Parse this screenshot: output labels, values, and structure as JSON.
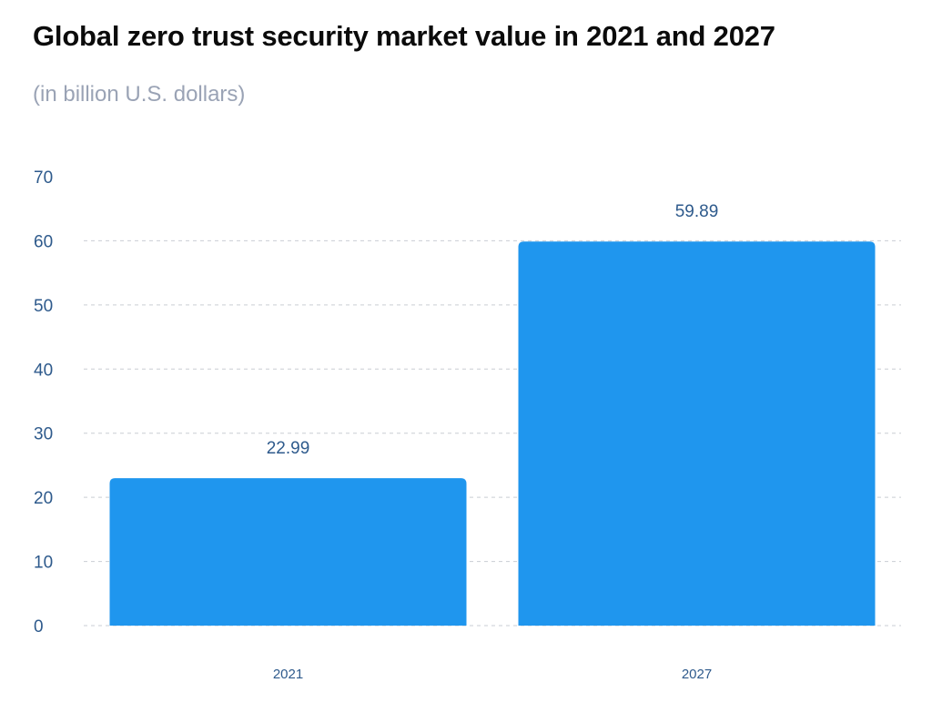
{
  "chart_data": {
    "type": "bar",
    "title": "Global zero trust security market value in 2021 and 2027",
    "subtitle": "(in billion U.S. dollars)",
    "categories": [
      "2021",
      "2027"
    ],
    "values": [
      22.99,
      59.89
    ],
    "value_labels": [
      "22.99",
      "59.89"
    ],
    "bar_color": "#1f96ee",
    "ylim": [
      0,
      70
    ],
    "yticks": [
      0,
      10,
      20,
      30,
      40,
      50,
      60,
      70
    ],
    "grid": true
  }
}
